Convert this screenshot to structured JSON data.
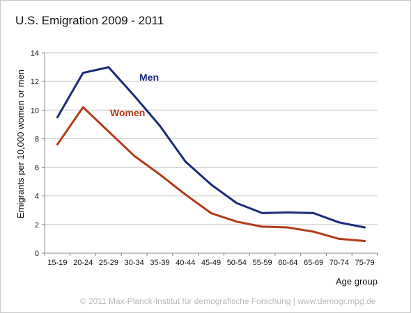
{
  "chart_data": {
    "type": "line",
    "title": "U.S. Emigration 2009 - 2011",
    "xlabel": "Age group",
    "ylabel": "Emigrants per 10,000 women or men",
    "categories": [
      "15-19",
      "20-24",
      "25-29",
      "30-34",
      "35-39",
      "40-44",
      "45-49",
      "50-54",
      "55-59",
      "60-64",
      "65-69",
      "70-74",
      "75-79"
    ],
    "ylim": [
      0,
      14
    ],
    "yticks": [
      0,
      2,
      4,
      6,
      8,
      10,
      12,
      14
    ],
    "grid": true,
    "series": [
      {
        "name": "Men",
        "color": "#1a2a7a",
        "values": [
          9.5,
          12.6,
          13.0,
          11.0,
          8.9,
          6.4,
          4.8,
          3.5,
          2.8,
          2.85,
          2.8,
          2.15,
          1.8
        ]
      },
      {
        "name": "Women",
        "color": "#b33a1a",
        "values": [
          7.6,
          10.2,
          8.5,
          6.8,
          5.5,
          4.1,
          2.8,
          2.2,
          1.85,
          1.8,
          1.5,
          1.0,
          0.85
        ]
      }
    ]
  },
  "footer": {
    "copyright": "© 2011 Max-Planck-Institut für demografische Forschung | www.demogr.mpg.de"
  }
}
